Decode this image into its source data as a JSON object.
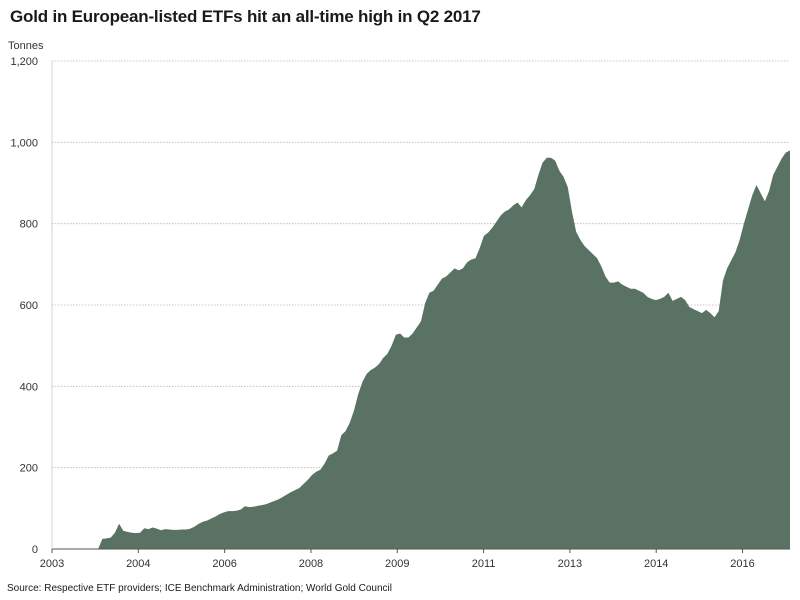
{
  "title": "Gold in European-listed ETFs hit an all-time high in Q2 2017",
  "source": "Source: Respective ETF providers; ICE Benchmark Administration; World Gold Council",
  "colors": {
    "area": "#5a7264",
    "grid": "#b5b5b5",
    "axis": "#555555"
  },
  "chart_data": {
    "type": "area",
    "title": "Gold in European-listed ETFs hit an all-time high in Q2 2017",
    "ylabel": "Tonnes",
    "xlabel": "",
    "ylim": [
      0,
      1200
    ],
    "yticks": [
      0,
      200,
      400,
      600,
      800,
      1000,
      1200
    ],
    "ytick_labels": [
      "0",
      "200",
      "400",
      "600",
      "800",
      "1,000",
      "1,200"
    ],
    "xtick_labels": [
      "2003",
      "2004",
      "2006",
      "2008",
      "2009",
      "2011",
      "2013",
      "2014",
      "2016"
    ],
    "grid": true,
    "series": [
      {
        "values": [
          0,
          0,
          0,
          0,
          0,
          0,
          0,
          0,
          0,
          0,
          0,
          0,
          25,
          26,
          28,
          40,
          62,
          45,
          42,
          40,
          39,
          40,
          51,
          49,
          53,
          50,
          46,
          49,
          48,
          47,
          47,
          48,
          48,
          50,
          55,
          62,
          67,
          70,
          75,
          80,
          86,
          90,
          93,
          93,
          94,
          97,
          105,
          103,
          104,
          106,
          108,
          110,
          114,
          118,
          122,
          128,
          134,
          140,
          145,
          150,
          160,
          170,
          182,
          190,
          195,
          210,
          230,
          235,
          242,
          280,
          290,
          310,
          340,
          380,
          410,
          430,
          440,
          446,
          455,
          470,
          480,
          500,
          527,
          530,
          520,
          520,
          530,
          545,
          560,
          605,
          630,
          635,
          650,
          665,
          670,
          680,
          690,
          685,
          690,
          705,
          712,
          715,
          740,
          770,
          778,
          790,
          805,
          820,
          830,
          835,
          845,
          852,
          840,
          858,
          870,
          885,
          920,
          950,
          962,
          962,
          955,
          930,
          915,
          890,
          830,
          780,
          760,
          745,
          735,
          725,
          715,
          695,
          670,
          655,
          655,
          658,
          650,
          645,
          640,
          640,
          635,
          630,
          620,
          615,
          612,
          615,
          620,
          630,
          610,
          615,
          620,
          612,
          595,
          590,
          585,
          580,
          588,
          580,
          570,
          585,
          660,
          690,
          710,
          730,
          760,
          800,
          835,
          870,
          895,
          875,
          855,
          880,
          920,
          940,
          960,
          975,
          980
        ]
      }
    ]
  }
}
